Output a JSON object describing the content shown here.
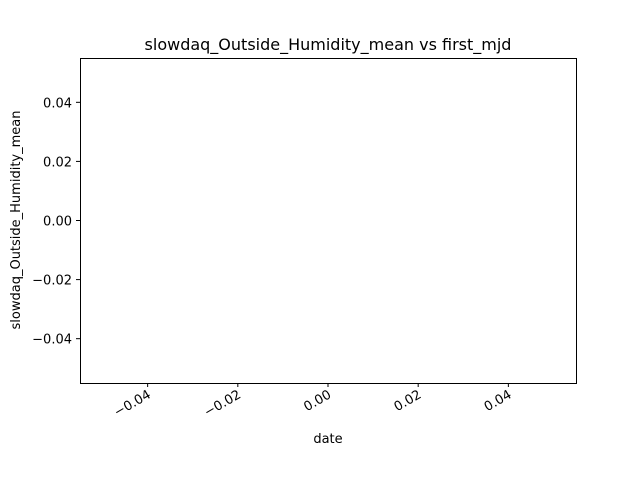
{
  "chart_data": {
    "type": "line",
    "title": "slowdaq_Outside_Humidity_mean vs first_mjd",
    "xlabel": "date",
    "ylabel": "slowdaq_Outside_Humidity_mean",
    "xlim": [
      -0.055,
      0.055
    ],
    "ylim": [
      -0.055,
      0.055
    ],
    "x_ticks": [
      -0.04,
      -0.02,
      0.0,
      0.02,
      0.04
    ],
    "x_tick_labels": [
      "−0.04",
      "−0.02",
      "0.00",
      "0.02",
      "0.04"
    ],
    "y_ticks": [
      -0.04,
      -0.02,
      0.0,
      0.02,
      0.04
    ],
    "y_tick_labels": [
      "−0.04",
      "−0.02",
      "0.00",
      "0.02",
      "0.04"
    ],
    "series": [
      {
        "x": [],
        "y": []
      }
    ],
    "grid": false,
    "legend": "none"
  }
}
